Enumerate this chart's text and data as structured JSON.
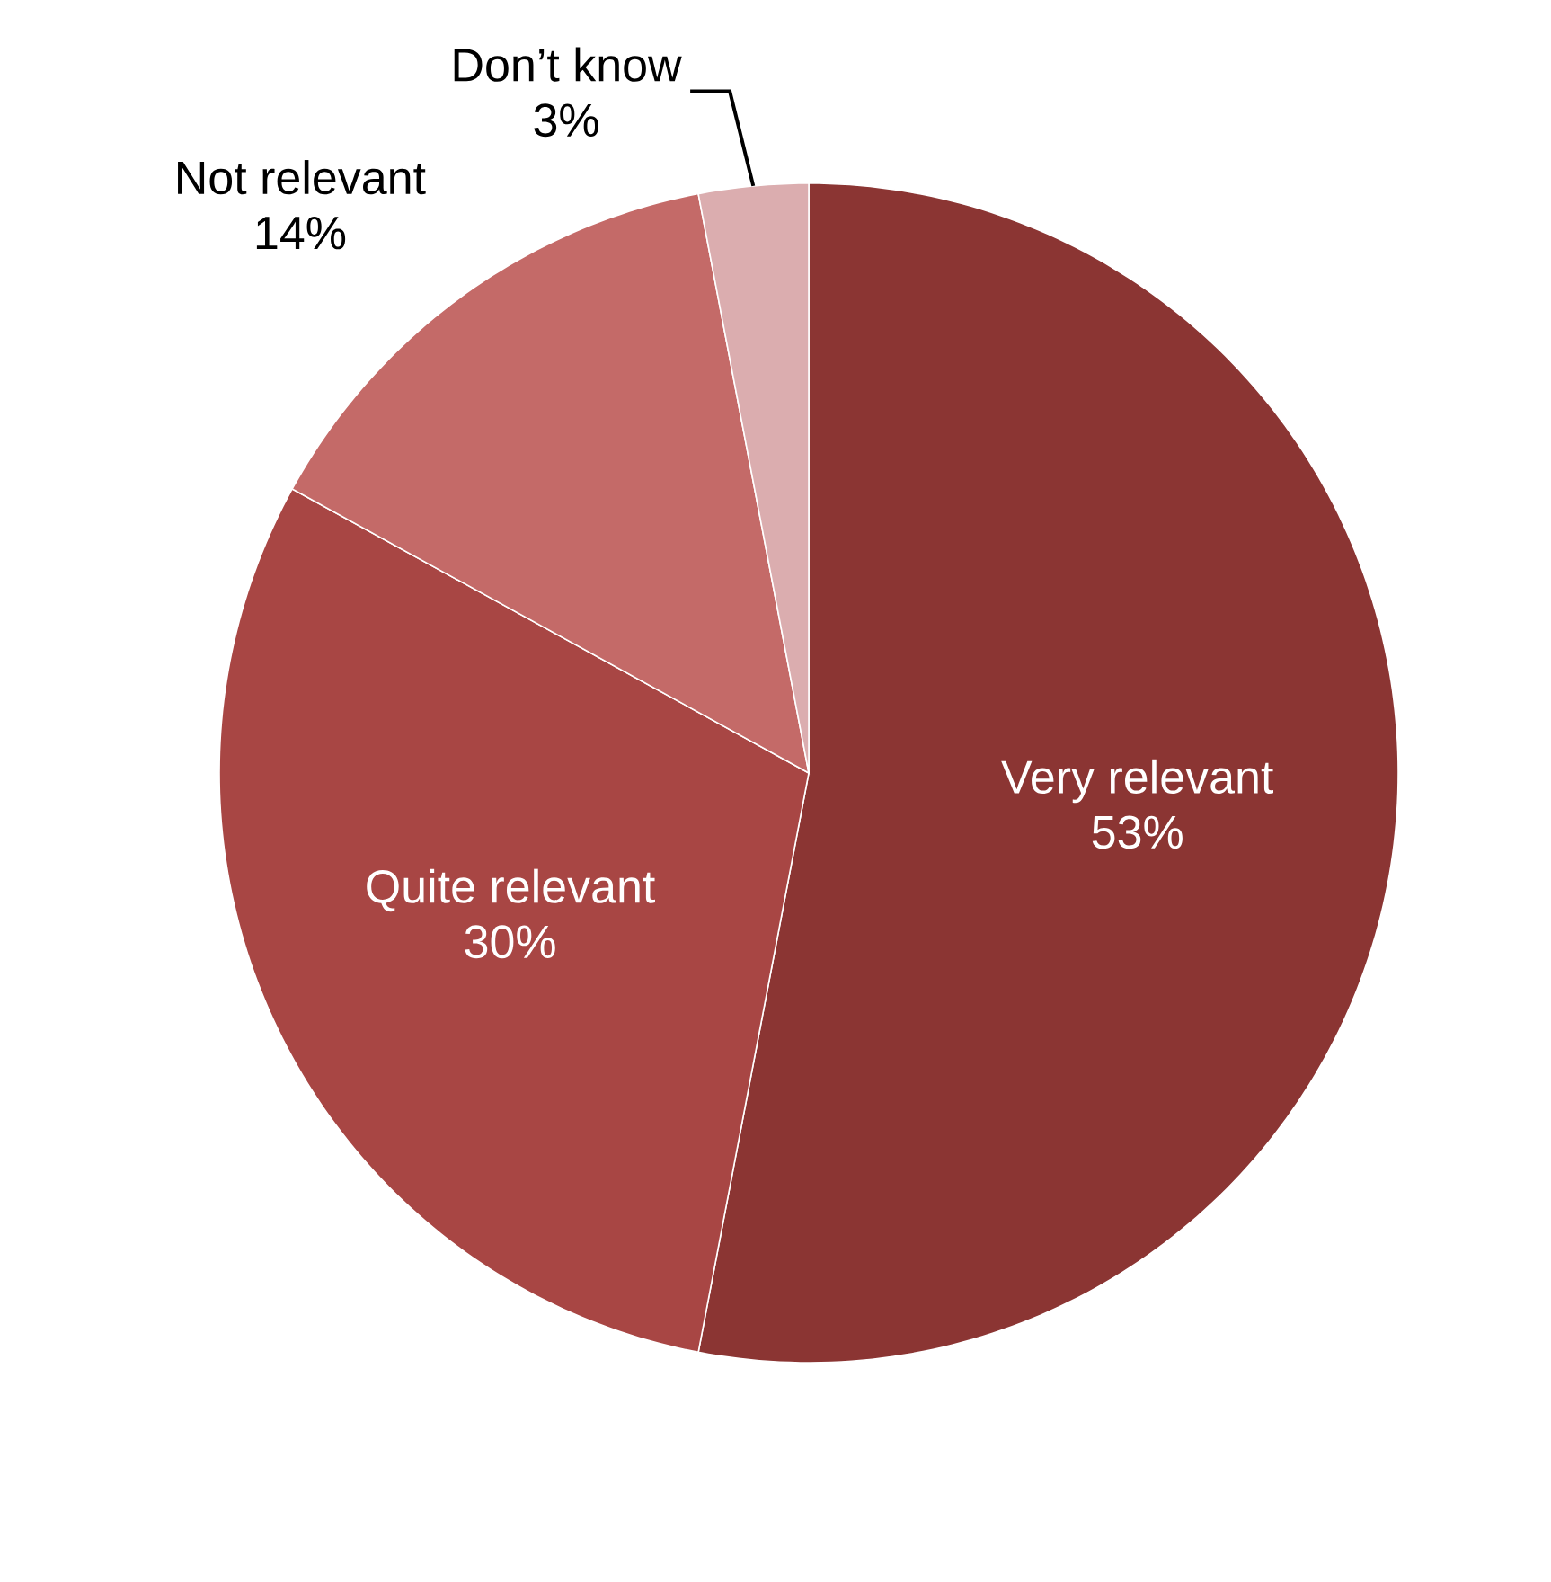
{
  "chart_data": {
    "type": "pie",
    "categories": [
      "Very relevant",
      "Quite relevant",
      "Not relevant",
      "Don’t know"
    ],
    "values": [
      53,
      30,
      14,
      3
    ],
    "value_labels": [
      "53%",
      "30%",
      "14%",
      "3%"
    ],
    "colors": [
      "#8b3533",
      "#a84644",
      "#c46a68",
      "#dbadaf"
    ]
  }
}
